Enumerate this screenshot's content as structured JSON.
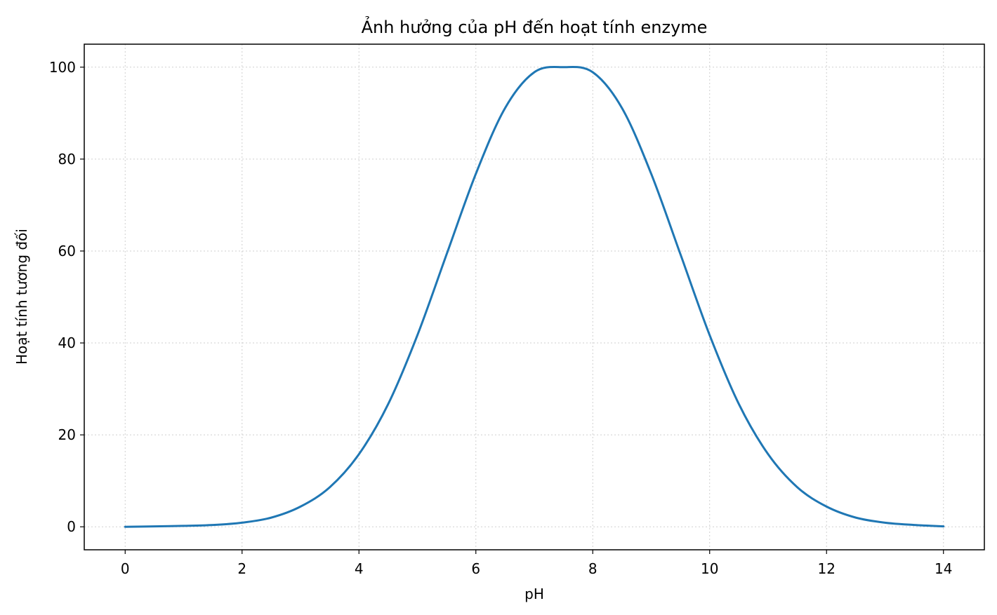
{
  "chart_data": {
    "type": "line",
    "title": "Ảnh hưởng của pH đến hoạt tính enzyme",
    "xlabel": "pH",
    "ylabel": "Hoạt tính tương đối",
    "xlim": [
      -0.7,
      14.7
    ],
    "ylim": [
      -5,
      105
    ],
    "x_ticks": [
      0,
      2,
      4,
      6,
      8,
      10,
      12,
      14
    ],
    "y_ticks": [
      0,
      20,
      40,
      60,
      80,
      100
    ],
    "x_tick_labels": [
      "0",
      "2",
      "4",
      "6",
      "8",
      "10",
      "12",
      "14"
    ],
    "y_tick_labels": [
      "0",
      "20",
      "40",
      "60",
      "80",
      "100"
    ],
    "grid": true,
    "series": [
      {
        "color": "#1f77b4",
        "x": [
          0,
          0.5,
          1,
          1.5,
          2,
          2.5,
          3,
          3.5,
          4,
          4.5,
          5,
          5.5,
          6,
          6.5,
          7,
          7.5,
          8,
          8.5,
          9,
          9.5,
          10,
          10.5,
          11,
          11.5,
          12,
          12.5,
          13,
          13.5,
          14
        ],
        "values": [
          0.0,
          0.1,
          0.2,
          0.4,
          0.9,
          2.0,
          4.4,
          8.6,
          15.8,
          26.7,
          41.7,
          59.3,
          76.8,
          91.1,
          98.9,
          100.0,
          98.9,
          91.1,
          76.8,
          59.3,
          41.7,
          26.7,
          15.8,
          8.6,
          4.4,
          2.0,
          0.9,
          0.4,
          0.1
        ]
      }
    ]
  }
}
